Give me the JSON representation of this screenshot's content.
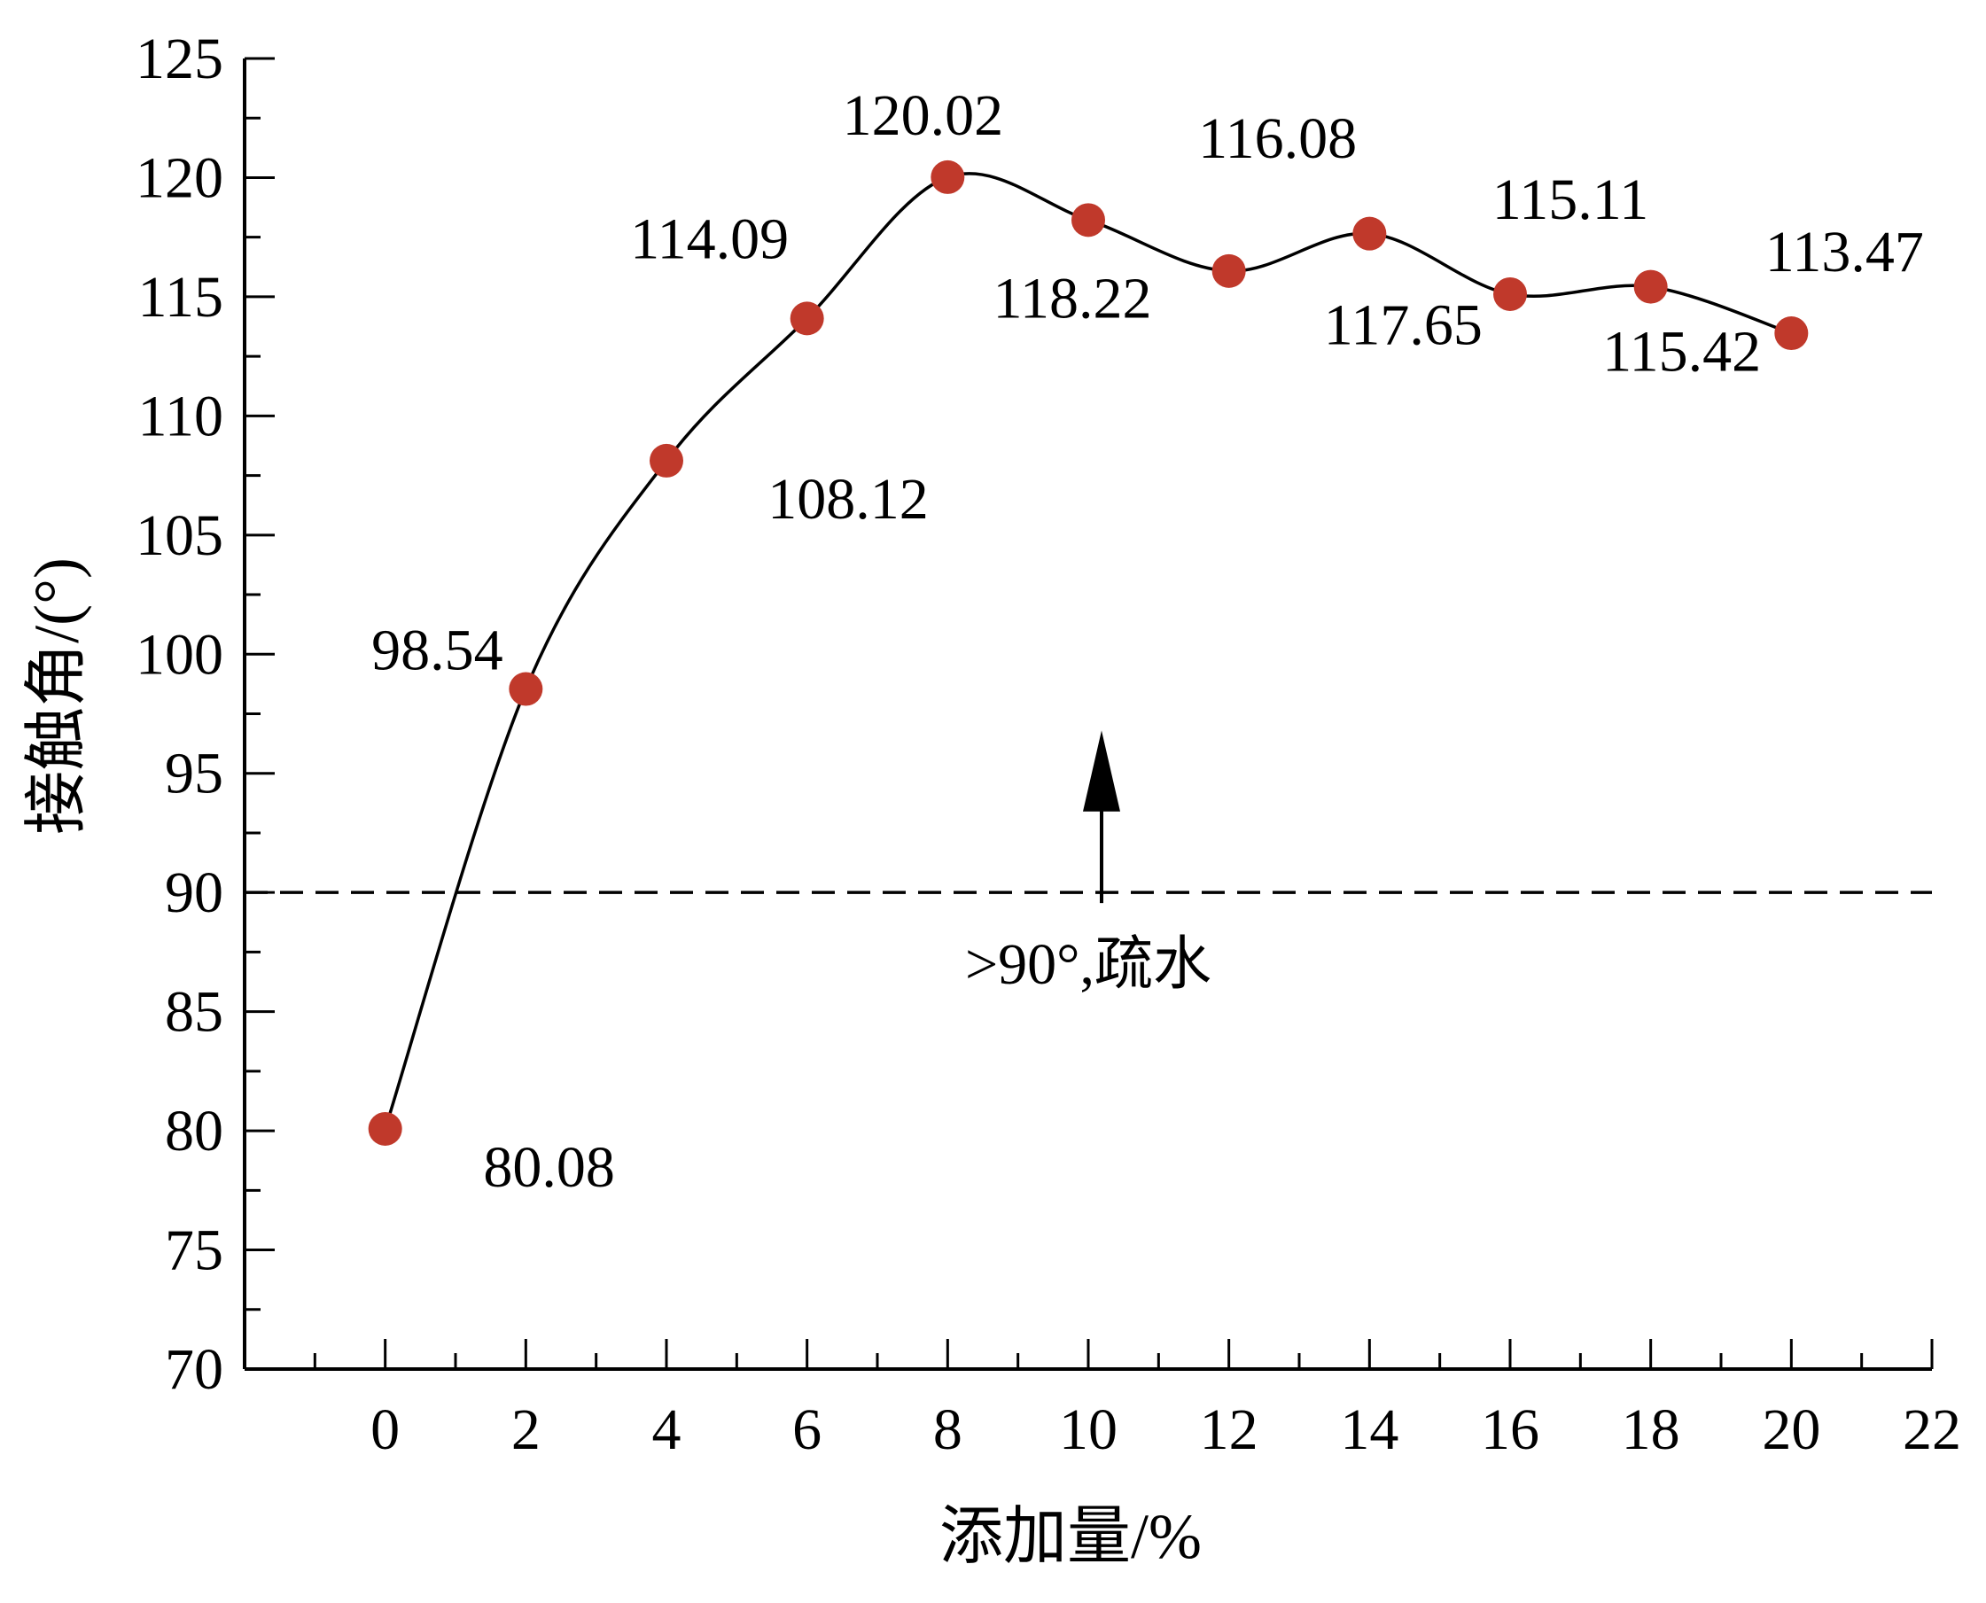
{
  "chart_data": {
    "type": "line",
    "title": "",
    "xlabel": "添加量/%",
    "ylabel": "接触角/(°)",
    "xlim": [
      -2,
      22
    ],
    "ylim": [
      70,
      125
    ],
    "x_ticks": [
      0,
      2,
      4,
      6,
      8,
      10,
      12,
      14,
      16,
      18,
      20,
      22
    ],
    "y_ticks": [
      70,
      75,
      80,
      85,
      90,
      95,
      100,
      105,
      110,
      115,
      120,
      125
    ],
    "grid": false,
    "legend": "none",
    "series": [
      {
        "color": "#c0392b",
        "line_color": "#000000",
        "smooth": true,
        "x": [
          0,
          2,
          4,
          6,
          8,
          10,
          12,
          14,
          16,
          18,
          20
        ],
        "y": [
          80.08,
          98.54,
          108.12,
          114.09,
          120.02,
          118.22,
          116.08,
          117.65,
          115.11,
          115.42,
          113.47
        ],
        "labels": [
          "80.08",
          "98.54",
          "108.12",
          "114.09",
          "120.02",
          "118.22",
          "116.08",
          "117.65",
          "115.11",
          "115.42",
          "113.47"
        ]
      }
    ],
    "reference_line": {
      "y": 90,
      "style": "dashed"
    },
    "annotation": {
      "text": ">90°,疏水",
      "arrow": "up",
      "x": 10
    }
  }
}
